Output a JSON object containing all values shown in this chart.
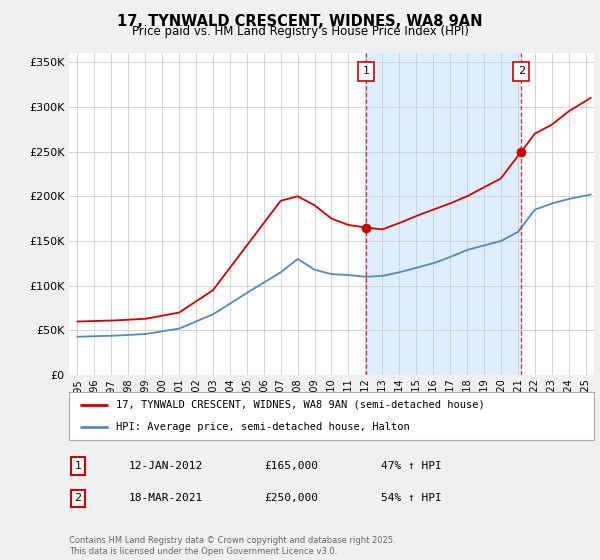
{
  "title": "17, TYNWALD CRESCENT, WIDNES, WA8 9AN",
  "subtitle": "Price paid vs. HM Land Registry's House Price Index (HPI)",
  "ytick_values": [
    0,
    50000,
    100000,
    150000,
    200000,
    250000,
    300000,
    350000
  ],
  "ylim": [
    0,
    360000
  ],
  "xlim_start": 1994.5,
  "xlim_end": 2025.5,
  "legend_line1": "17, TYNWALD CRESCENT, WIDNES, WA8 9AN (semi-detached house)",
  "legend_line2": "HPI: Average price, semi-detached house, Halton",
  "marker1_date": "12-JAN-2012",
  "marker1_price": "£165,000",
  "marker1_hpi": "47% ↑ HPI",
  "marker1_x": 2012.03,
  "marker1_y": 165000,
  "marker2_date": "18-MAR-2021",
  "marker2_price": "£250,000",
  "marker2_hpi": "54% ↑ HPI",
  "marker2_x": 2021.21,
  "marker2_y": 250000,
  "red_color": "#cc0000",
  "blue_color": "#5588bb",
  "shade_color": "#ddeeff",
  "bg_color": "#f0f0f0",
  "plot_bg_color": "#ffffff",
  "grid_color": "#cccccc",
  "copyright_text": "Contains HM Land Registry data © Crown copyright and database right 2025.\nThis data is licensed under the Open Government Licence v3.0.",
  "xtick_years": [
    1995,
    1996,
    1997,
    1998,
    1999,
    2000,
    2001,
    2002,
    2003,
    2004,
    2005,
    2006,
    2007,
    2008,
    2009,
    2010,
    2011,
    2012,
    2013,
    2014,
    2015,
    2016,
    2017,
    2018,
    2019,
    2020,
    2021,
    2022,
    2023,
    2024,
    2025
  ]
}
